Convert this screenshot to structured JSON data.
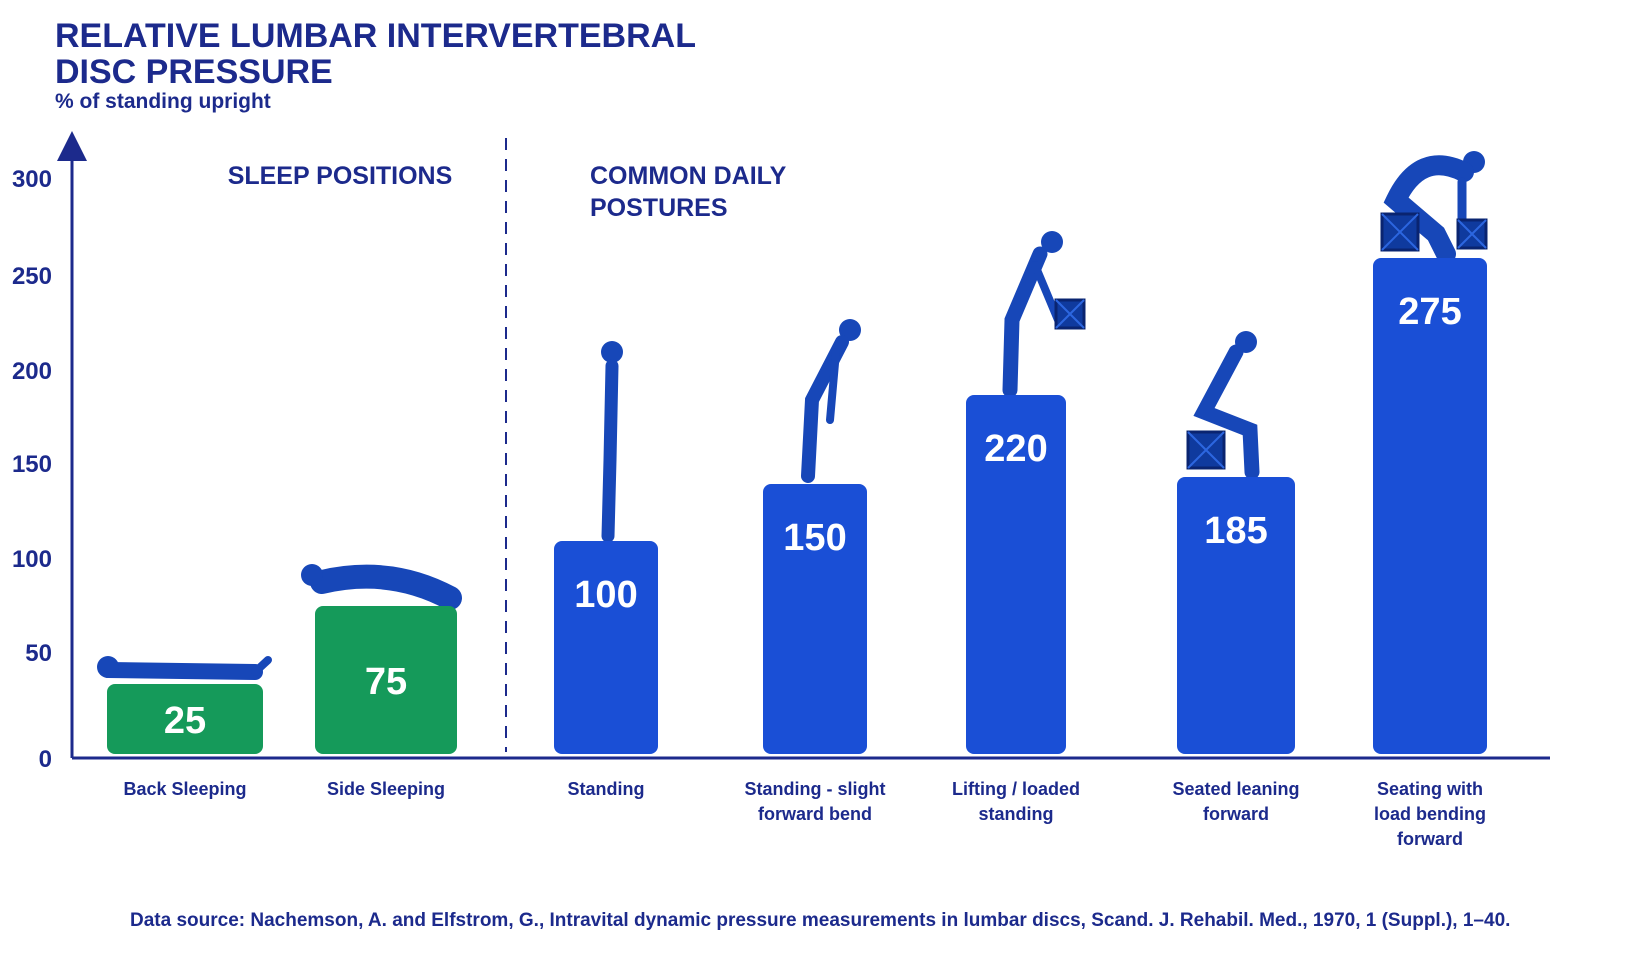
{
  "title": "RELATIVE LUMBAR INTERVERTEBRAL DISC PRESSURE",
  "subtitle": "% of standing upright",
  "source": "Data source: Nachemson, A. and Elfstrom, G., Intravital dynamic pressure measurements in lumbar discs, Scand. J. Rehabil. Med., 1970, 1 (Suppl.), 1–40.",
  "colors": {
    "sleep": "#159a5a",
    "daily": "#1a4fd6",
    "text": "#1c2a8c"
  },
  "groups": [
    {
      "label": [
        "SLEEP POSITIONS"
      ]
    },
    {
      "label": [
        "COMMON DAILY",
        "POSTURES"
      ]
    }
  ],
  "chart_data": {
    "type": "bar",
    "categories": [
      "Back Sleeping",
      "Side Sleeping",
      "Standing",
      "Standing - slight forward bend",
      "Lifting / loaded standing",
      "Seated leaning forward",
      "Seating with load bending forward"
    ],
    "category_lines": [
      [
        "Back Sleeping"
      ],
      [
        "Side Sleeping"
      ],
      [
        "Standing"
      ],
      [
        "Standing - slight",
        "forward bend"
      ],
      [
        "Lifting / loaded",
        "standing"
      ],
      [
        "Seated leaning",
        "forward"
      ],
      [
        "Seating with",
        "load bending",
        "forward"
      ]
    ],
    "values": [
      25,
      75,
      100,
      150,
      220,
      185,
      275
    ],
    "groups": [
      "sleep",
      "sleep",
      "daily",
      "daily",
      "daily",
      "daily",
      "daily"
    ],
    "ylim": [
      0,
      300
    ],
    "yticks": [
      0,
      50,
      100,
      150,
      200,
      250,
      300
    ],
    "grid": false,
    "legend": "none"
  }
}
